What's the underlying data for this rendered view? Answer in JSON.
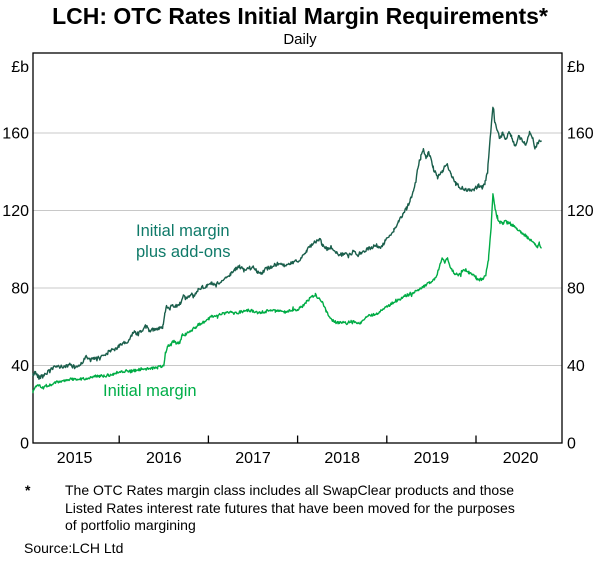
{
  "page": {
    "title": "LCH: OTC Rates Initial Margin Requirements*",
    "subtitle": "Daily"
  },
  "footnote": {
    "marker": "*",
    "text": "The OTC Rates margin class includes all SwapClear products and those\nListed Rates interest rate futures that have been moved for the purposes\nof portfolio margining",
    "source_label": "Source:",
    "source_value": "LCH Ltd"
  },
  "chart_data": {
    "type": "line",
    "title": "LCH: OTC Rates Initial Margin Requirements*",
    "subtitle": "Daily",
    "x_axis": {
      "tick_years": [
        2015,
        2016,
        2017,
        2018,
        2019,
        2020
      ],
      "range": [
        2015.03,
        2020.96
      ],
      "labels": [
        "2015",
        "2016",
        "2017",
        "2018",
        "2019",
        "2020"
      ]
    },
    "y_axis": {
      "ticks": [
        0,
        40,
        80,
        120,
        160
      ],
      "tick_labels": [
        "0",
        "40",
        "80",
        "120",
        "160"
      ],
      "range": [
        0,
        201
      ],
      "unit_left": "£b",
      "unit_right": "£b"
    },
    "grid": {
      "show": true,
      "at": [
        40,
        80,
        120,
        160
      ],
      "color": "#c8c8c8"
    },
    "frame_color": "#000000",
    "series": [
      {
        "name": "Initial margin plus add-ons",
        "label": "Initial margin\nplus add-ons",
        "color": "#1a5e4b",
        "label_color": "#0f7a69",
        "points": [
          [
            2015.03,
            35
          ],
          [
            2015.06,
            36.5
          ],
          [
            2015.1,
            33.8
          ],
          [
            2015.15,
            35
          ],
          [
            2015.2,
            36.5
          ],
          [
            2015.25,
            38.5
          ],
          [
            2015.3,
            39.3
          ],
          [
            2015.4,
            39.5
          ],
          [
            2015.45,
            40.5
          ],
          [
            2015.5,
            39
          ],
          [
            2015.55,
            40
          ],
          [
            2015.6,
            42.5
          ],
          [
            2015.63,
            44.5
          ],
          [
            2015.68,
            42.8
          ],
          [
            2015.72,
            43.5
          ],
          [
            2015.78,
            44
          ],
          [
            2015.85,
            46
          ],
          [
            2015.9,
            47.5
          ],
          [
            2015.95,
            48.5
          ],
          [
            2016.0,
            50
          ],
          [
            2016.05,
            51.5
          ],
          [
            2016.1,
            52
          ],
          [
            2016.13,
            55
          ],
          [
            2016.17,
            57.5
          ],
          [
            2016.2,
            56.5
          ],
          [
            2016.25,
            57.5
          ],
          [
            2016.3,
            60.5
          ],
          [
            2016.33,
            58
          ],
          [
            2016.38,
            58.5
          ],
          [
            2016.45,
            59.5
          ],
          [
            2016.49,
            60
          ],
          [
            2016.51,
            66
          ],
          [
            2016.53,
            71
          ],
          [
            2016.57,
            69.5
          ],
          [
            2016.6,
            71.5
          ],
          [
            2016.63,
            70.5
          ],
          [
            2016.68,
            72
          ],
          [
            2016.72,
            75.5
          ],
          [
            2016.76,
            74
          ],
          [
            2016.8,
            77
          ],
          [
            2016.84,
            75.5
          ],
          [
            2016.88,
            79
          ],
          [
            2016.93,
            80.5
          ],
          [
            2016.98,
            81
          ],
          [
            2017.03,
            82.5
          ],
          [
            2017.08,
            81
          ],
          [
            2017.13,
            83
          ],
          [
            2017.2,
            85
          ],
          [
            2017.25,
            87.5
          ],
          [
            2017.3,
            89.5
          ],
          [
            2017.35,
            91
          ],
          [
            2017.4,
            89
          ],
          [
            2017.45,
            90
          ],
          [
            2017.5,
            91
          ],
          [
            2017.55,
            88.5
          ],
          [
            2017.6,
            88
          ],
          [
            2017.65,
            90
          ],
          [
            2017.7,
            91
          ],
          [
            2017.78,
            92.5
          ],
          [
            2017.85,
            91.5
          ],
          [
            2017.9,
            92
          ],
          [
            2017.95,
            93
          ],
          [
            2018.0,
            94
          ],
          [
            2018.05,
            96
          ],
          [
            2018.1,
            99
          ],
          [
            2018.15,
            102
          ],
          [
            2018.2,
            104
          ],
          [
            2018.25,
            105
          ],
          [
            2018.28,
            102
          ],
          [
            2018.33,
            100
          ],
          [
            2018.38,
            101
          ],
          [
            2018.42,
            98.5
          ],
          [
            2018.48,
            97
          ],
          [
            2018.52,
            98
          ],
          [
            2018.57,
            96.5
          ],
          [
            2018.62,
            98.5
          ],
          [
            2018.67,
            97.5
          ],
          [
            2018.72,
            98
          ],
          [
            2018.78,
            100
          ],
          [
            2018.83,
            101
          ],
          [
            2018.88,
            102
          ],
          [
            2018.93,
            101
          ],
          [
            2018.98,
            104
          ],
          [
            2019.03,
            107
          ],
          [
            2019.08,
            110
          ],
          [
            2019.13,
            114
          ],
          [
            2019.18,
            118
          ],
          [
            2019.22,
            121
          ],
          [
            2019.26,
            125
          ],
          [
            2019.3,
            130
          ],
          [
            2019.34,
            140
          ],
          [
            2019.38,
            148
          ],
          [
            2019.41,
            152
          ],
          [
            2019.44,
            147
          ],
          [
            2019.47,
            150
          ],
          [
            2019.52,
            142
          ],
          [
            2019.57,
            137
          ],
          [
            2019.62,
            140
          ],
          [
            2019.67,
            144
          ],
          [
            2019.72,
            139
          ],
          [
            2019.77,
            134
          ],
          [
            2019.82,
            132
          ],
          [
            2019.87,
            131
          ],
          [
            2019.93,
            130.5
          ],
          [
            2019.98,
            131
          ],
          [
            2020.03,
            133
          ],
          [
            2020.07,
            132
          ],
          [
            2020.1,
            134
          ],
          [
            2020.13,
            140
          ],
          [
            2020.16,
            158
          ],
          [
            2020.19,
            174
          ],
          [
            2020.21,
            166
          ],
          [
            2020.24,
            161
          ],
          [
            2020.27,
            157
          ],
          [
            2020.3,
            160
          ],
          [
            2020.33,
            156
          ],
          [
            2020.37,
            161
          ],
          [
            2020.4,
            158
          ],
          [
            2020.44,
            153
          ],
          [
            2020.48,
            158
          ],
          [
            2020.52,
            156
          ],
          [
            2020.56,
            154
          ],
          [
            2020.6,
            160
          ],
          [
            2020.63,
            158
          ],
          [
            2020.66,
            152
          ],
          [
            2020.7,
            156
          ],
          [
            2020.73,
            155
          ]
        ]
      },
      {
        "name": "Initial margin",
        "label": "Initial margin",
        "color": "#00ac45",
        "label_color": "#00ae48",
        "points": [
          [
            2015.03,
            26.5
          ],
          [
            2015.07,
            29.5
          ],
          [
            2015.1,
            30
          ],
          [
            2015.13,
            29
          ],
          [
            2015.18,
            29.5
          ],
          [
            2015.22,
            30
          ],
          [
            2015.28,
            31
          ],
          [
            2015.33,
            31.8
          ],
          [
            2015.38,
            32.3
          ],
          [
            2015.43,
            32.8
          ],
          [
            2015.48,
            33
          ],
          [
            2015.53,
            33.2
          ],
          [
            2015.58,
            33
          ],
          [
            2015.63,
            33.5
          ],
          [
            2015.68,
            34
          ],
          [
            2015.73,
            34.3
          ],
          [
            2015.78,
            34.6
          ],
          [
            2015.83,
            34.5
          ],
          [
            2015.88,
            35
          ],
          [
            2015.93,
            35.6
          ],
          [
            2015.98,
            36.5
          ],
          [
            2016.03,
            37
          ],
          [
            2016.08,
            37.3
          ],
          [
            2016.13,
            37
          ],
          [
            2016.18,
            37.5
          ],
          [
            2016.23,
            38
          ],
          [
            2016.28,
            38.5
          ],
          [
            2016.33,
            38.2
          ],
          [
            2016.38,
            38.6
          ],
          [
            2016.43,
            39
          ],
          [
            2016.47,
            39.5
          ],
          [
            2016.5,
            40.5
          ],
          [
            2016.52,
            47
          ],
          [
            2016.55,
            50
          ],
          [
            2016.58,
            51.5
          ],
          [
            2016.61,
            52.3
          ],
          [
            2016.64,
            51.6
          ],
          [
            2016.68,
            52
          ],
          [
            2016.71,
            56
          ],
          [
            2016.74,
            55.5
          ],
          [
            2016.78,
            57.5
          ],
          [
            2016.82,
            58.5
          ],
          [
            2016.86,
            60
          ],
          [
            2016.9,
            61.5
          ],
          [
            2016.95,
            62.5
          ],
          [
            2017.0,
            64
          ],
          [
            2017.05,
            65.5
          ],
          [
            2017.1,
            66
          ],
          [
            2017.15,
            66.5
          ],
          [
            2017.2,
            67
          ],
          [
            2017.25,
            67.5
          ],
          [
            2017.3,
            67
          ],
          [
            2017.35,
            67.5
          ],
          [
            2017.4,
            68
          ],
          [
            2017.45,
            68.5
          ],
          [
            2017.5,
            68
          ],
          [
            2017.55,
            67
          ],
          [
            2017.6,
            67.5
          ],
          [
            2017.65,
            68
          ],
          [
            2017.7,
            68.5
          ],
          [
            2017.75,
            68
          ],
          [
            2017.8,
            68.5
          ],
          [
            2017.85,
            67.5
          ],
          [
            2017.9,
            68
          ],
          [
            2017.95,
            68.5
          ],
          [
            2018.0,
            69
          ],
          [
            2018.05,
            70.5
          ],
          [
            2018.1,
            73
          ],
          [
            2018.15,
            75
          ],
          [
            2018.2,
            76.5
          ],
          [
            2018.24,
            75
          ],
          [
            2018.28,
            73
          ],
          [
            2018.32,
            68
          ],
          [
            2018.36,
            65
          ],
          [
            2018.4,
            63
          ],
          [
            2018.45,
            62
          ],
          [
            2018.5,
            62.5
          ],
          [
            2018.55,
            61.5
          ],
          [
            2018.6,
            63
          ],
          [
            2018.65,
            62.5
          ],
          [
            2018.7,
            62
          ],
          [
            2018.75,
            64
          ],
          [
            2018.8,
            65.5
          ],
          [
            2018.85,
            66.5
          ],
          [
            2018.9,
            67
          ],
          [
            2018.95,
            68.5
          ],
          [
            2019.0,
            70.5
          ],
          [
            2019.06,
            72
          ],
          [
            2019.12,
            73.5
          ],
          [
            2019.18,
            75.5
          ],
          [
            2019.24,
            76.5
          ],
          [
            2019.3,
            78
          ],
          [
            2019.36,
            79
          ],
          [
            2019.42,
            81
          ],
          [
            2019.48,
            83
          ],
          [
            2019.53,
            84
          ],
          [
            2019.57,
            88
          ],
          [
            2019.6,
            93
          ],
          [
            2019.62,
            96
          ],
          [
            2019.65,
            93.5
          ],
          [
            2019.68,
            95
          ],
          [
            2019.72,
            90
          ],
          [
            2019.76,
            87.5
          ],
          [
            2019.8,
            86.5
          ],
          [
            2019.84,
            88.5
          ],
          [
            2019.88,
            89.5
          ],
          [
            2019.92,
            88
          ],
          [
            2019.96,
            87
          ],
          [
            2020.0,
            85.5
          ],
          [
            2020.04,
            84
          ],
          [
            2020.08,
            85
          ],
          [
            2020.11,
            87
          ],
          [
            2020.14,
            95
          ],
          [
            2020.17,
            112
          ],
          [
            2020.19,
            128
          ],
          [
            2020.21,
            122
          ],
          [
            2020.24,
            116
          ],
          [
            2020.27,
            114
          ],
          [
            2020.3,
            113.5
          ],
          [
            2020.34,
            114.5
          ],
          [
            2020.38,
            113
          ],
          [
            2020.42,
            112
          ],
          [
            2020.46,
            110.5
          ],
          [
            2020.5,
            109
          ],
          [
            2020.54,
            107.5
          ],
          [
            2020.58,
            106
          ],
          [
            2020.62,
            104.5
          ],
          [
            2020.66,
            102.5
          ],
          [
            2020.69,
            101
          ],
          [
            2020.71,
            103
          ],
          [
            2020.73,
            101
          ]
        ]
      }
    ]
  }
}
